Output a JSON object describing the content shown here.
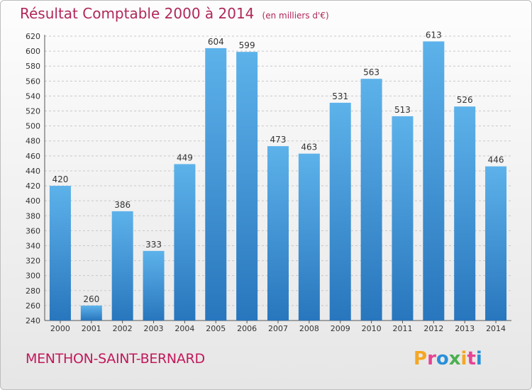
{
  "title": "Résultat Comptable 2000 à 2014",
  "subtitle": "(en milliers d'€)",
  "commune": "MENTHON-SAINT-BERNARD",
  "logo": {
    "letters": [
      "P",
      "r",
      "o",
      "x",
      "i",
      "t",
      "i"
    ],
    "colors": [
      "#f5a623",
      "#e84393",
      "#2a8fd8",
      "#4caf50",
      "#f5a623",
      "#e84393",
      "#2a8fd8"
    ]
  },
  "chart_data": {
    "type": "bar",
    "categories": [
      "2000",
      "2001",
      "2002",
      "2003",
      "2004",
      "2005",
      "2006",
      "2007",
      "2008",
      "2009",
      "2010",
      "2011",
      "2012",
      "2013",
      "2014"
    ],
    "values": [
      420,
      260,
      386,
      333,
      449,
      604,
      599,
      473,
      463,
      531,
      563,
      513,
      613,
      526,
      446
    ],
    "ylim": [
      240,
      620
    ],
    "yticks": [
      240,
      260,
      280,
      300,
      320,
      340,
      360,
      380,
      400,
      420,
      440,
      460,
      480,
      500,
      520,
      540,
      560,
      580,
      600,
      620
    ],
    "grid": true,
    "bar_color": "#3a95dd"
  }
}
